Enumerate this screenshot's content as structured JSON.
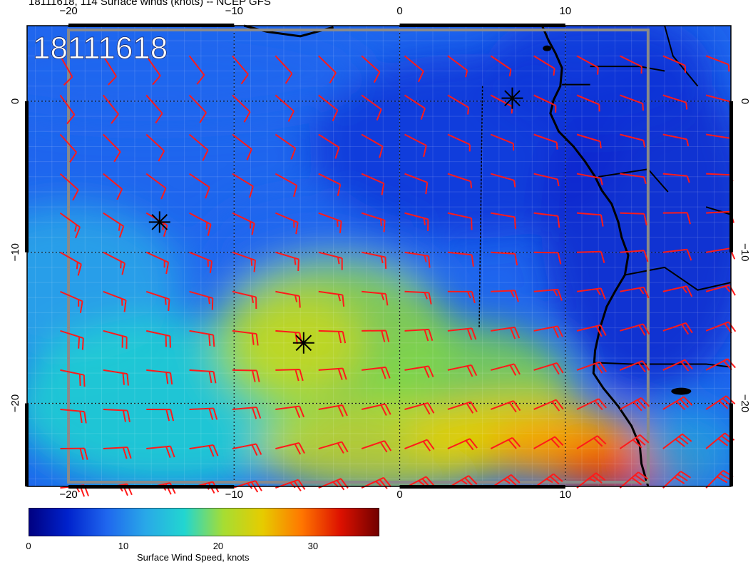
{
  "title": "18111618, 114 Surface winds (knots) -- NCEP GFS",
  "stamp": "18111618",
  "map": {
    "lon_range": [
      -22.5,
      20
    ],
    "lat_range": [
      -25.5,
      5
    ],
    "lon_ticks": [
      "-20",
      "-10",
      "0",
      "10"
    ],
    "lat_ticks": [
      "0",
      "-10",
      "-20"
    ],
    "grid_lines": true,
    "storm_markers": [
      {
        "lon": 6.8,
        "lat": 0.2
      },
      {
        "lon": -14.5,
        "lat": -8
      },
      {
        "lon": -5.8,
        "lat": -16
      }
    ]
  },
  "colorbar": {
    "label": "Surface Wind Speed, knots",
    "ticks": [
      "0",
      "10",
      "20",
      "30"
    ],
    "range": [
      0,
      37
    ],
    "colors": [
      "#000080",
      "#0022cc",
      "#1f66ee",
      "#29a8e8",
      "#22d6d0",
      "#a6dd33",
      "#e6cc00",
      "#ff7700",
      "#dd1100",
      "#700000"
    ]
  },
  "colors": {
    "barb": "#ff1a1a",
    "coast": "#000000"
  }
}
